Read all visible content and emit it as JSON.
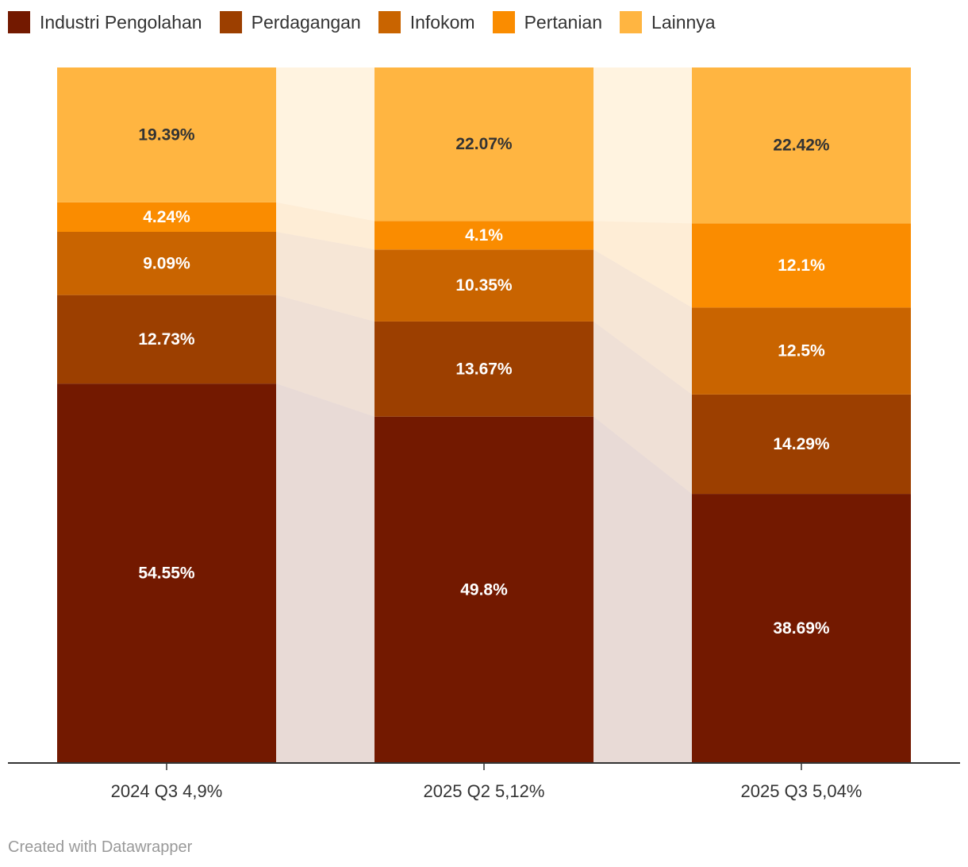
{
  "chart_data": {
    "type": "bar",
    "stacked": true,
    "normalized": true,
    "title": "",
    "xlabel": "",
    "ylabel": "",
    "ylim": [
      0,
      100
    ],
    "legend_position": "top-left",
    "categories": [
      "2024 Q3 4,9%",
      "2025 Q2 5,12%",
      "2025 Q3 5,04%"
    ],
    "series": [
      {
        "name": "Industri Pengolahan",
        "color": "#731900",
        "values": [
          54.55,
          49.8,
          38.69
        ],
        "labels": [
          "54.55%",
          "49.8%",
          "38.69%"
        ]
      },
      {
        "name": "Perdagangan",
        "color": "#9c3f00",
        "values": [
          12.73,
          13.67,
          14.29
        ],
        "labels": [
          "12.73%",
          "13.67%",
          "14.29%"
        ]
      },
      {
        "name": "Infokom",
        "color": "#c96400",
        "values": [
          9.09,
          10.35,
          12.5
        ],
        "labels": [
          "9.09%",
          "10.35%",
          "12.5%"
        ]
      },
      {
        "name": "Pertanian",
        "color": "#fa8c00",
        "values": [
          4.24,
          4.1,
          12.1
        ],
        "labels": [
          "4.24%",
          "4.1%",
          "12.1%"
        ]
      },
      {
        "name": "Lainnya",
        "color": "#ffb541",
        "values": [
          19.39,
          22.07,
          22.42
        ],
        "labels": [
          "19.39%",
          "22.07%",
          "22.42%"
        ]
      }
    ]
  },
  "footer": {
    "credit": "Created with Datawrapper"
  }
}
